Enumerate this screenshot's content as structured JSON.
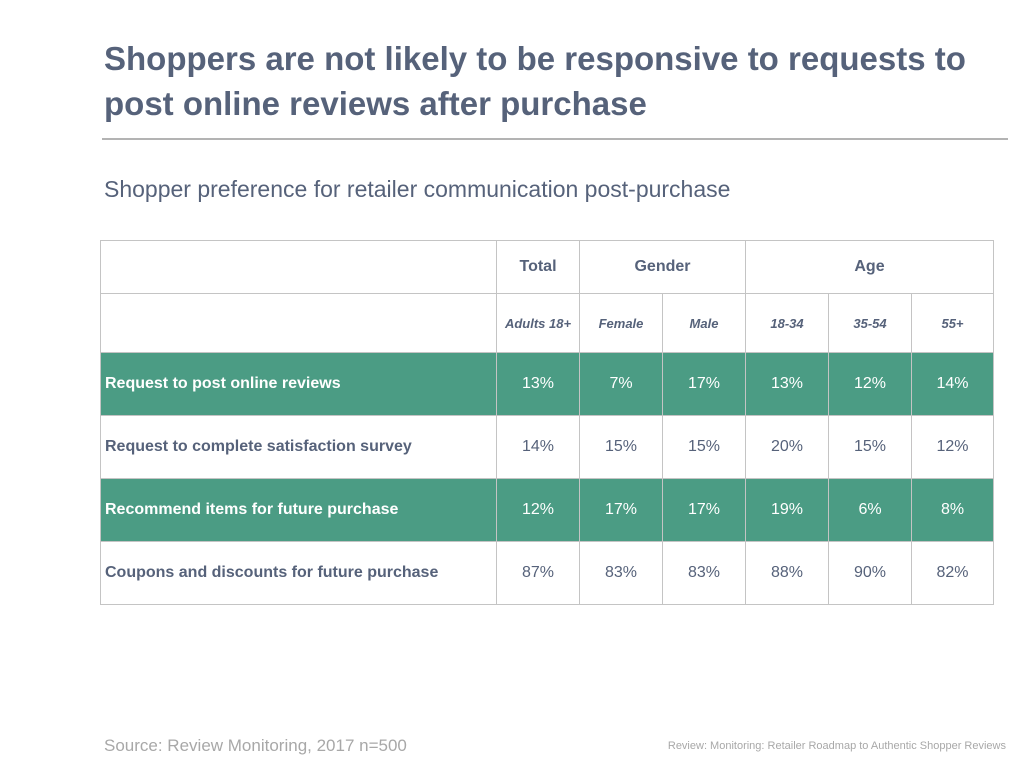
{
  "title": "Shoppers are not likely to be responsive to requests to post online reviews after purchase",
  "subtitle": "Shopper preference for retailer communication post-purchase",
  "colors": {
    "highlight_row": "#4b9c84",
    "text": "#56627a"
  },
  "table": {
    "group_headers": [
      "Total",
      "Gender",
      "Age"
    ],
    "sub_headers": [
      "Adults 18+",
      "Female",
      "Male",
      "18-34",
      "35-54",
      "55+"
    ],
    "rows": [
      {
        "label": "Request to post online reviews",
        "highlight": true,
        "values": [
          "13%",
          "7%",
          "17%",
          "13%",
          "12%",
          "14%"
        ]
      },
      {
        "label": "Request to complete satisfaction survey",
        "highlight": false,
        "values": [
          "14%",
          "15%",
          "15%",
          "20%",
          "15%",
          "12%"
        ]
      },
      {
        "label": "Recommend items for future purchase",
        "highlight": true,
        "values": [
          "12%",
          "17%",
          "17%",
          "19%",
          "6%",
          "8%"
        ]
      },
      {
        "label": "Coupons and discounts for future purchase",
        "highlight": false,
        "values": [
          "87%",
          "83%",
          "83%",
          "88%",
          "90%",
          "82%"
        ]
      }
    ]
  },
  "footer": {
    "source": "Source: Review Monitoring, 2017 n=500",
    "credit": "Review: Monitoring: Retailer Roadmap to Authentic Shopper Reviews"
  }
}
